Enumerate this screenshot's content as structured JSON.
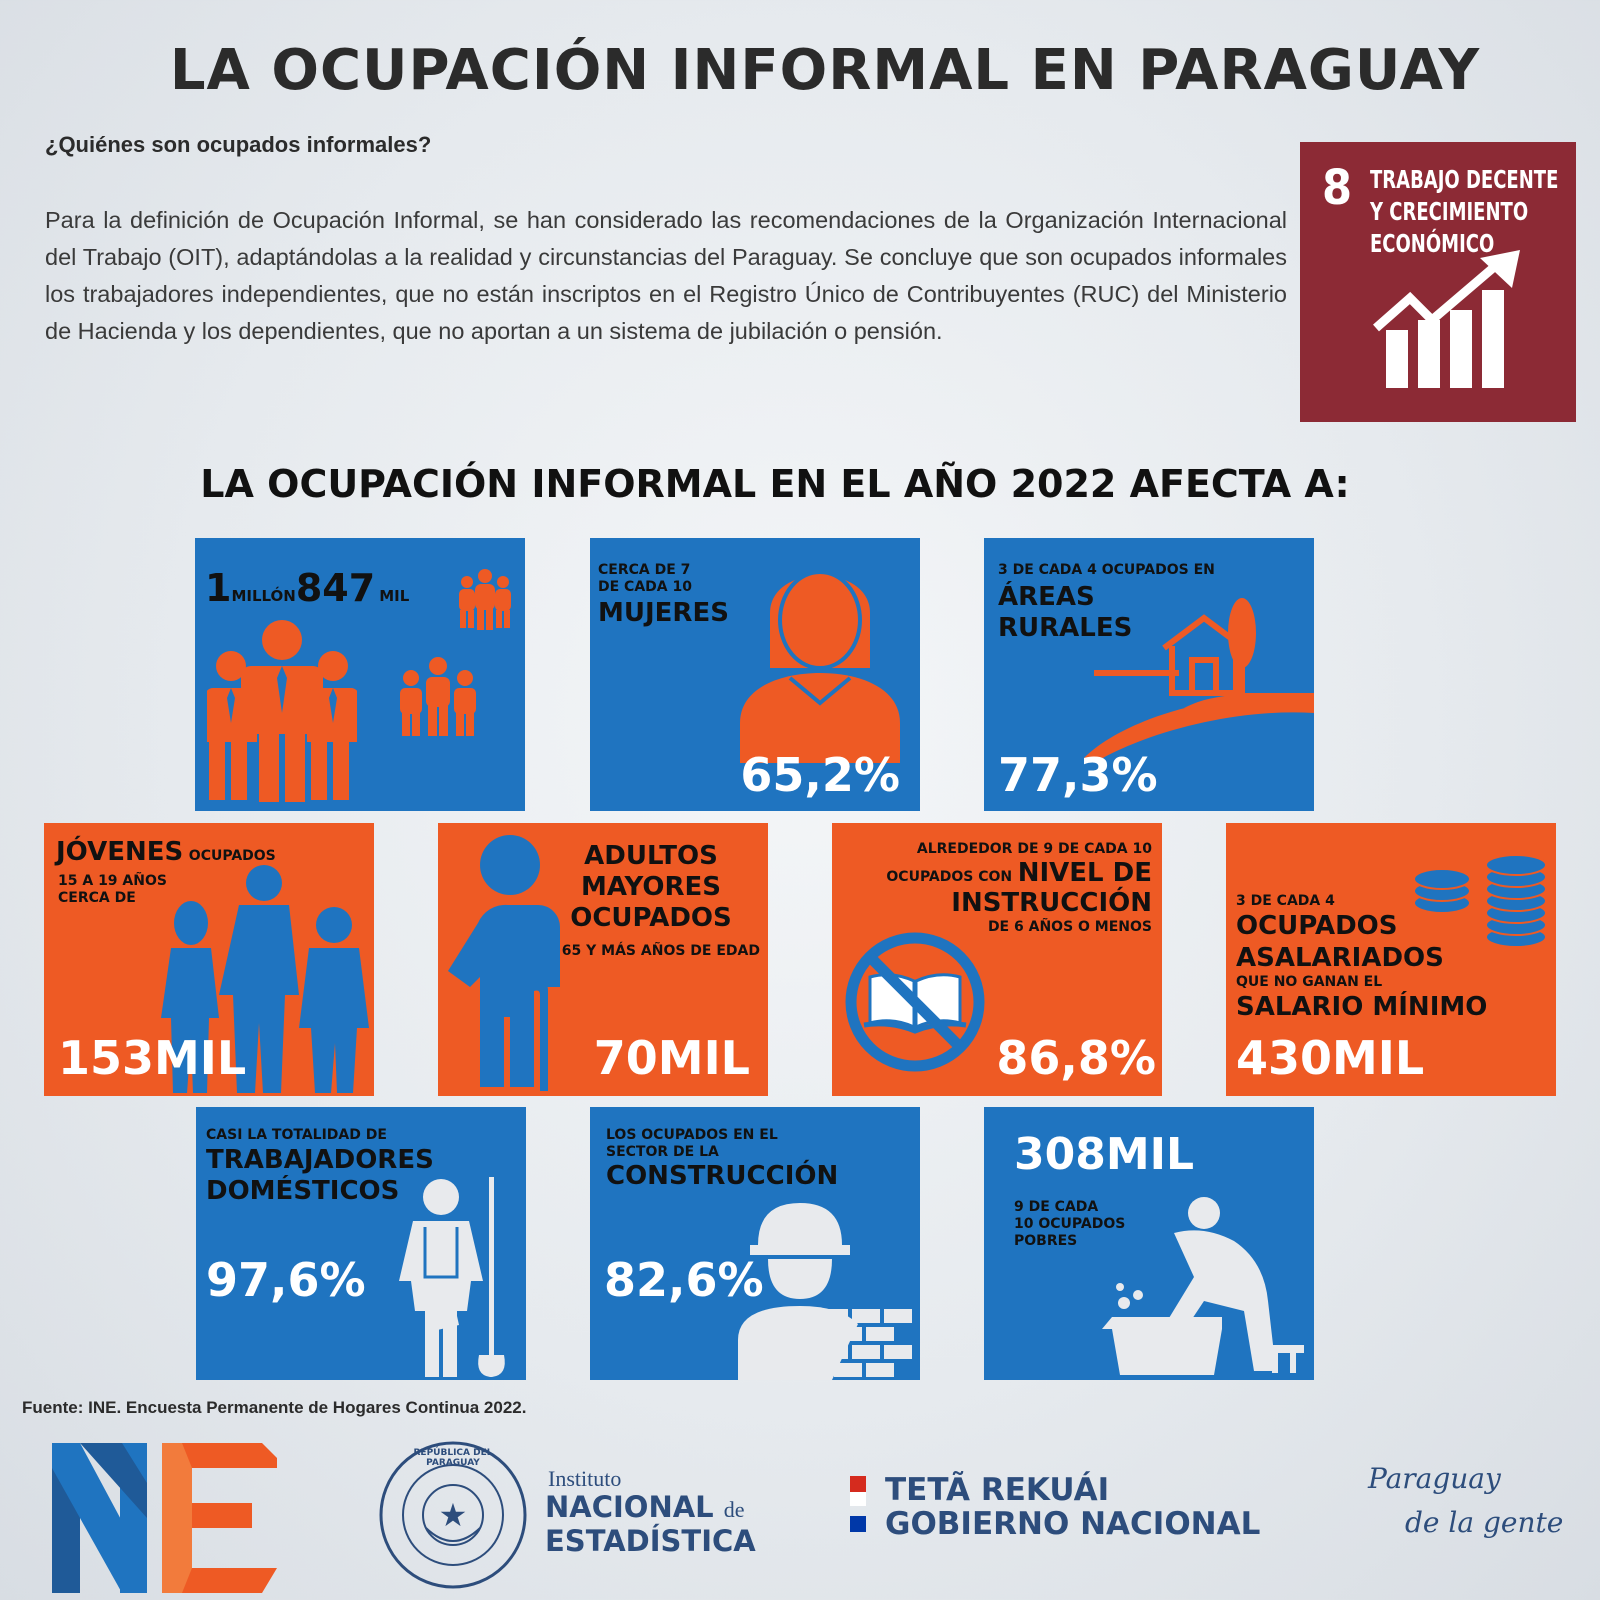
{
  "title": "LA OCUPACIÓN INFORMAL EN PARAGUAY",
  "subheading": "¿Quiénes son ocupados informales?",
  "definition": "Para la definición de Ocupación Informal, se han considerado las recomendaciones de la Organización Internacional del Trabajo (OIT), adaptándolas a la realidad y circunstancias del Paraguay. Se concluye que son ocupados informales los trabajadores independientes, que no están inscriptos en el Registro Único de Contribuyentes (RUC) del Ministerio de Hacienda y los dependientes, que no aportan a un sistema de jubilación o pensión.",
  "sdg": {
    "number": "8",
    "title_line1": "TRABAJO DECENTE",
    "title_line2": "Y CRECIMIENTO",
    "title_line3": "ECONÓMICO",
    "color": "#8c2a35"
  },
  "section_title": "LA OCUPACIÓN INFORMAL EN EL AÑO 2022 AFECTA A:",
  "colors": {
    "blue": "#1f74c0",
    "orange": "#ee5a24"
  },
  "tiles": {
    "total": {
      "n1": "1",
      "u1": "MILLÓN",
      "n2": "847",
      "u2": "MIL",
      "icon": "people-group-icon"
    },
    "mujeres": {
      "l1": "CERCA DE 7",
      "l2": "DE CADA 10",
      "heading": "MUJERES",
      "value": "65,2%",
      "icon": "woman-icon"
    },
    "rurales": {
      "l1": "3 DE CADA 4 OCUPADOS EN",
      "h1": "ÁREAS",
      "h2": "RURALES",
      "value": "77,3%",
      "icon": "rural-house-icon"
    },
    "jovenes": {
      "heading": "JÓVENES",
      "suffix": "OCUPADOS",
      "l1": "15 A 19 AÑOS",
      "l2": "CERCA DE",
      "value": "153MIL",
      "icon": "youth-silhouette-icon"
    },
    "adultos": {
      "h1": "ADULTOS",
      "h2": "MAYORES",
      "h3": "OCUPADOS",
      "l1": "65 Y MÁS AÑOS DE EDAD",
      "value": "70MIL",
      "icon": "elderly-person-icon"
    },
    "instruccion": {
      "l1": "ALREDEDOR DE 9 DE CADA 10",
      "l2": "OCUPADOS CON",
      "h1": "NIVEL DE",
      "h2": "INSTRUCCIÓN",
      "l3": "DE 6 AÑOS O MENOS",
      "value": "86,8%",
      "icon": "no-book-icon"
    },
    "asalariados": {
      "l1": "3 DE CADA 4",
      "h1": "OCUPADOS",
      "h2": "ASALARIADOS",
      "l2": "QUE NO GANAN EL",
      "h3": "SALARIO MÍNIMO",
      "value": "430MIL",
      "icon": "coins-icon"
    },
    "domesticos": {
      "l1": "CASI LA TOTALIDAD DE",
      "h1": "TRABAJADORES",
      "h2": "DOMÉSTICOS",
      "value": "97,6%",
      "icon": "domestic-worker-icon"
    },
    "construccion": {
      "l1": "LOS OCUPADOS EN EL",
      "l2": "SECTOR DE LA",
      "h1": "CONSTRUCCIÓN",
      "value": "82,6%",
      "icon": "construction-worker-icon"
    },
    "pobres": {
      "value": "308MIL",
      "l1": "9 DE CADA",
      "l2": "10 OCUPADOS",
      "l3": "POBRES",
      "icon": "washing-clothes-icon"
    }
  },
  "source": "Fuente: INE. Encuesta Permanente de Hogares Continua 2022.",
  "footer": {
    "seal_text": "REPÚBLICA DEL PARAGUAY",
    "inst_l1": "Instituto",
    "inst_l2": "NACIONAL",
    "inst_de": "de",
    "inst_l3": "ESTADÍSTICA",
    "gov_l1": "TETÃ REKUÁI",
    "gov_l2": "GOBIERNO NACIONAL",
    "slogan_l1": "Paraguay",
    "slogan_l2": "de la gente"
  }
}
